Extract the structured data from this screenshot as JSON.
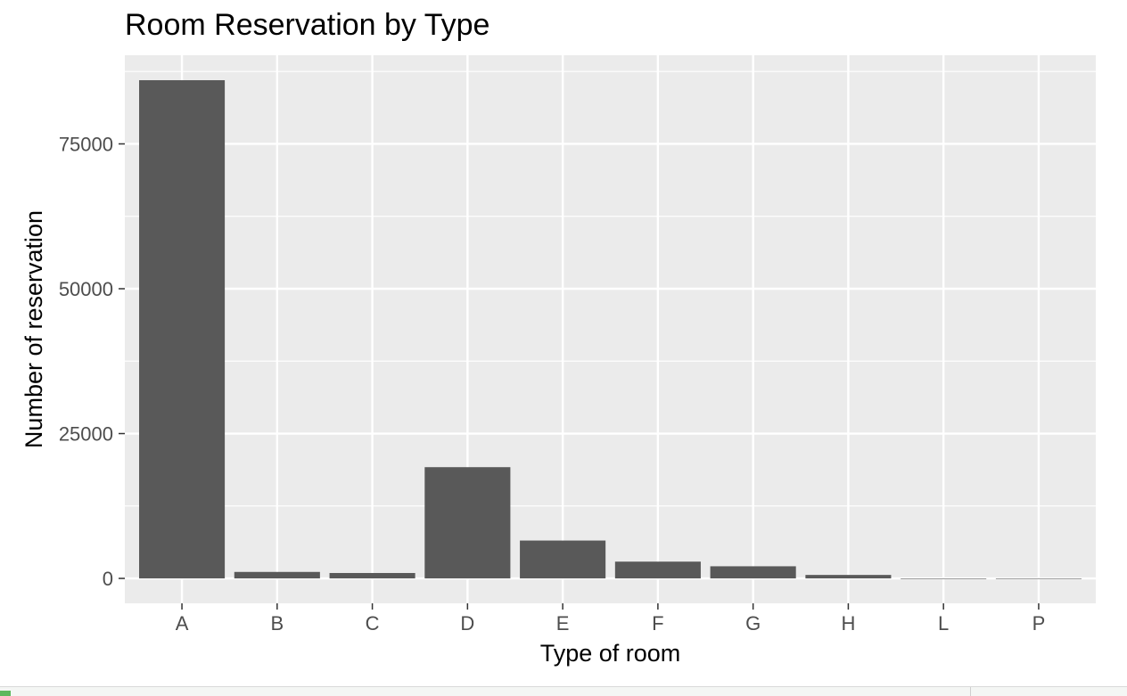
{
  "chart_data": {
    "type": "bar",
    "title": "Room Reservation by Type",
    "xlabel": "Type of room",
    "ylabel": "Number of reservation",
    "categories": [
      "A",
      "B",
      "C",
      "D",
      "E",
      "F",
      "G",
      "H",
      "L",
      "P"
    ],
    "values": [
      85994,
      1118,
      932,
      19201,
      6535,
      2897,
      2094,
      601,
      6,
      12
    ],
    "ylim": [
      -4300,
      90300
    ],
    "yticks": [
      0,
      25000,
      50000,
      75000
    ],
    "ytick_labels": [
      "0",
      "25000",
      "50000",
      "75000"
    ],
    "grid": true,
    "colors": {
      "panel": "#ebebeb",
      "grid": "#ffffff",
      "bar": "#595959",
      "tick": "#333333"
    }
  }
}
